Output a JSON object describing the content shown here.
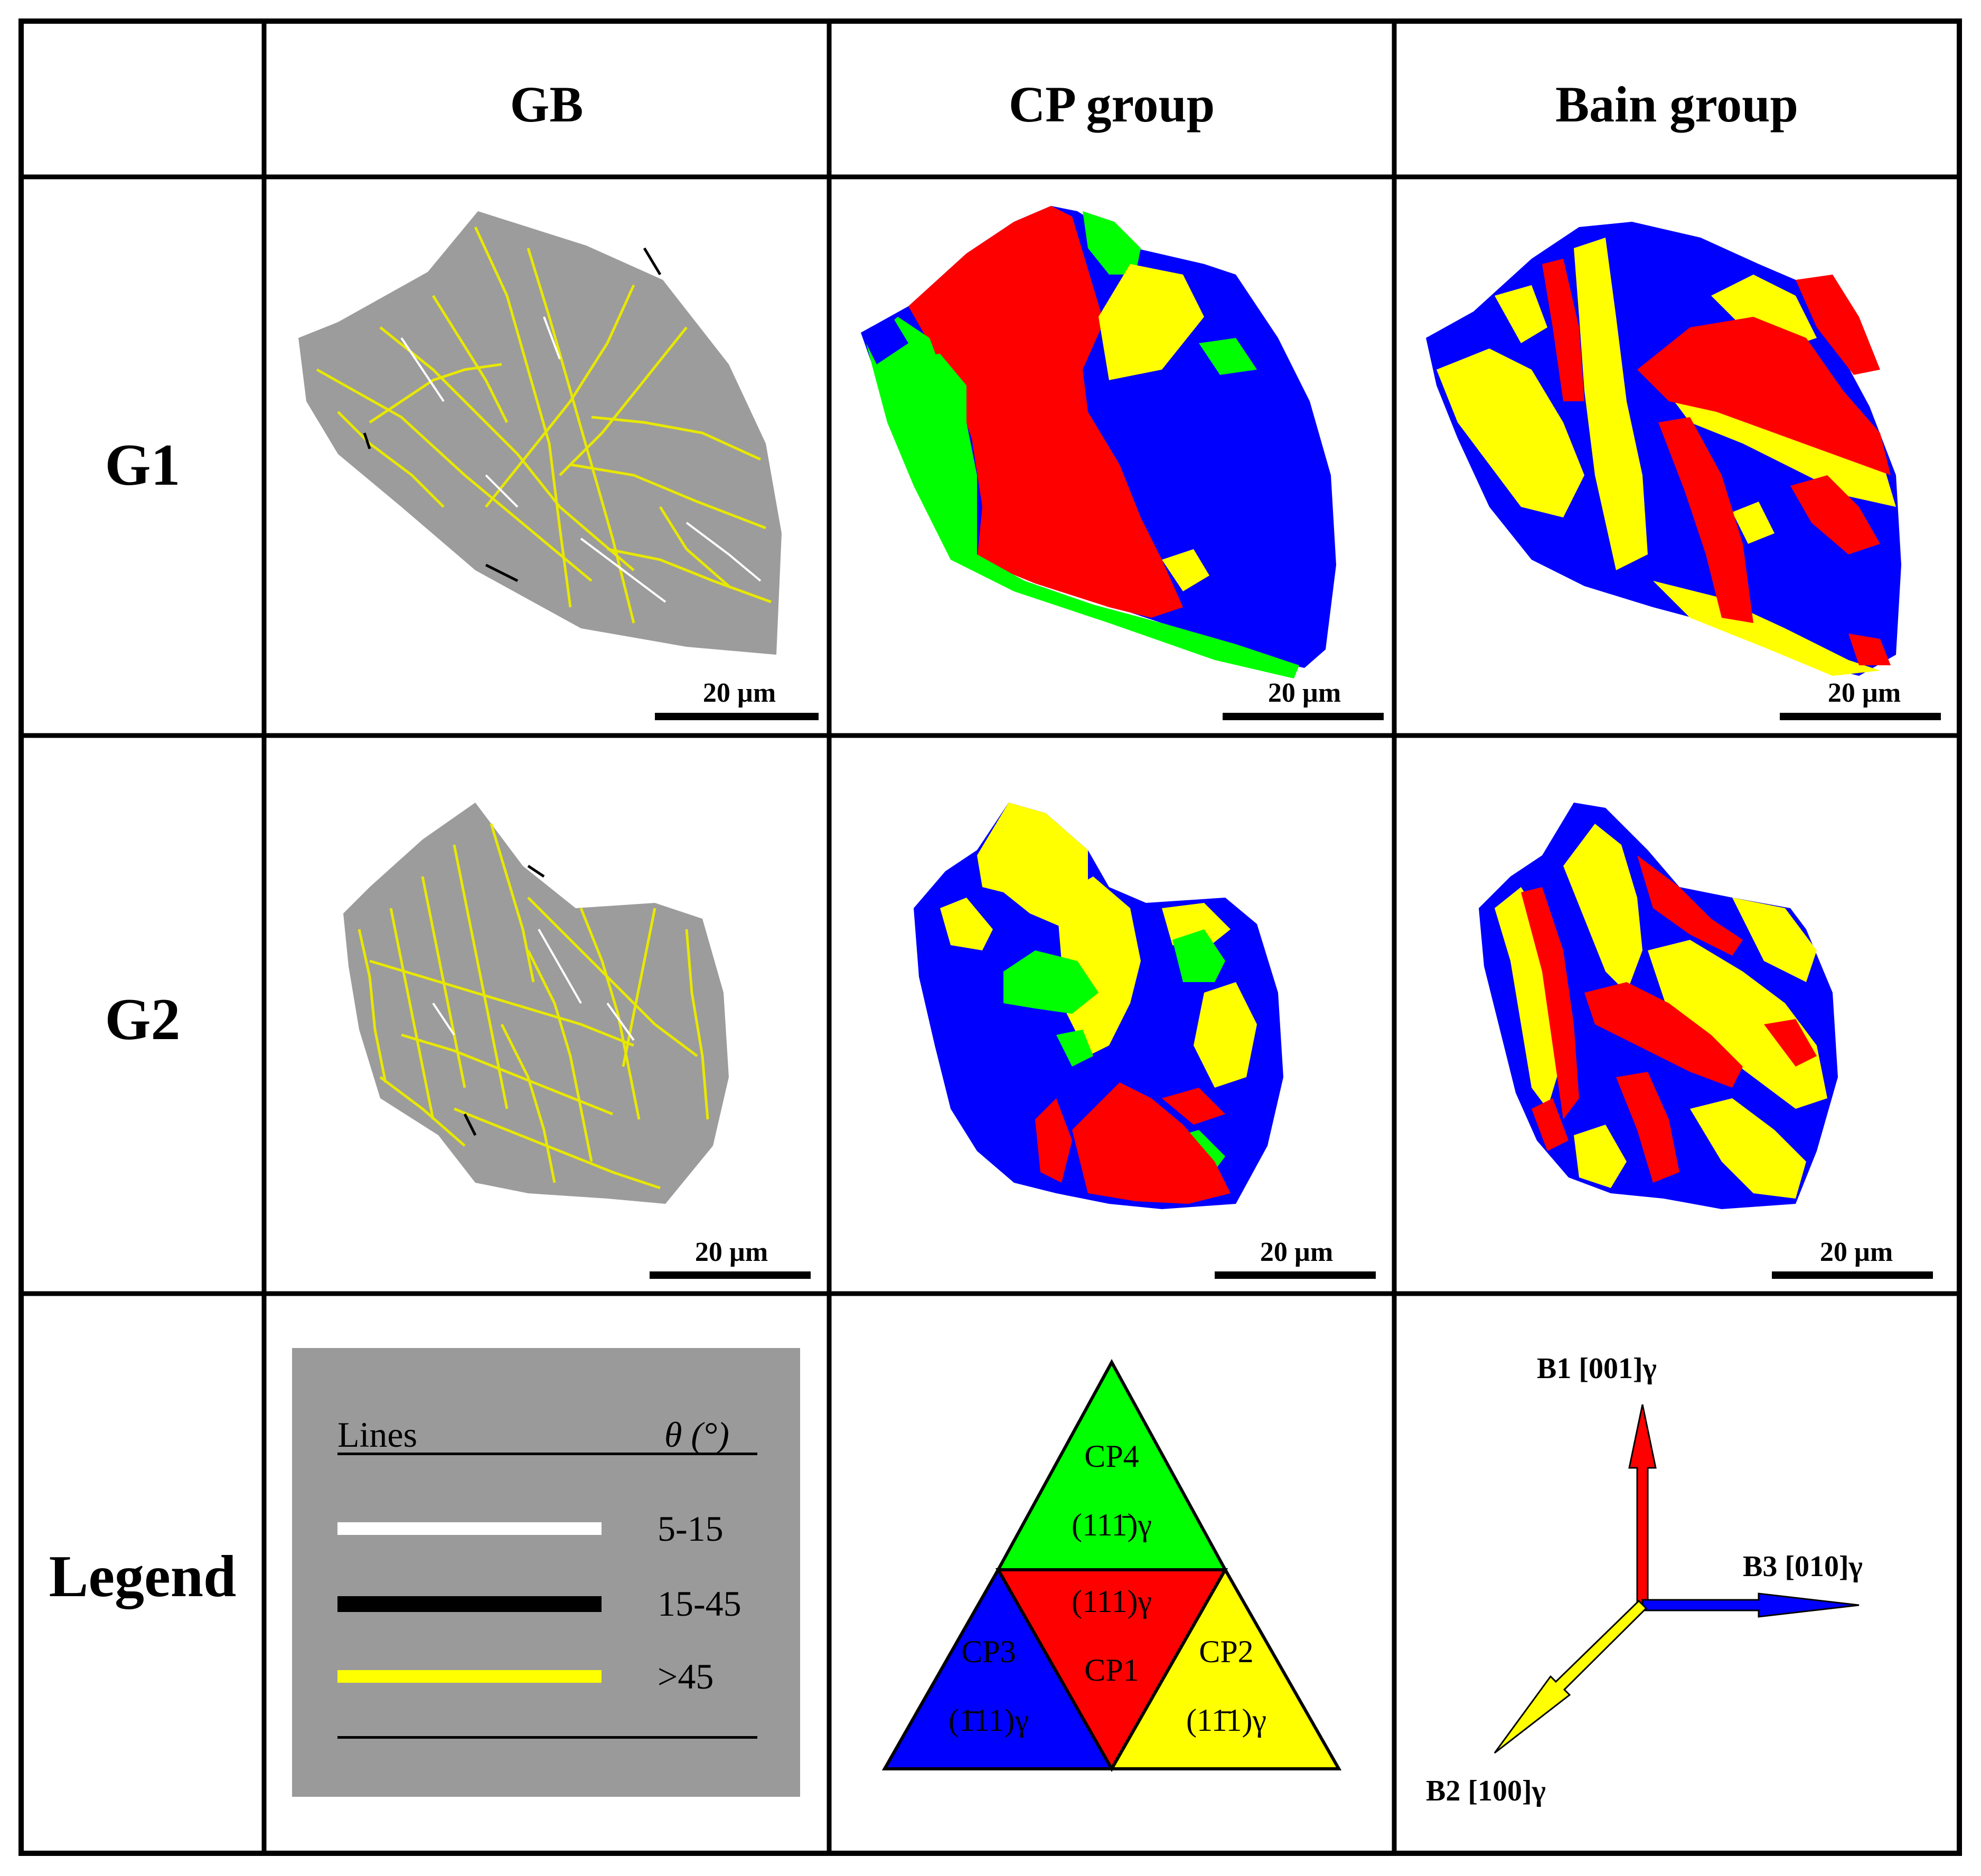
{
  "headers": {
    "gb": "GB",
    "cp": "CP group",
    "bain": "Bain group"
  },
  "rows": {
    "g1": "G1",
    "g2": "G2",
    "legend": "Legend"
  },
  "scale_label": "20 µm",
  "gb_legend": {
    "col_lines": "Lines",
    "col_theta": "θ (°)",
    "items": [
      {
        "range": "5-15",
        "color": "#ffffff"
      },
      {
        "range": "15-45",
        "color": "#000000"
      },
      {
        "range": ">45",
        "color": "#ffff00"
      }
    ]
  },
  "cp_legend": {
    "cp1": {
      "name": "CP1",
      "plane": "(111)γ",
      "color": "#ff0000"
    },
    "cp2": {
      "name": "CP2",
      "plane": "(11̄1)γ",
      "color": "#ffff00"
    },
    "cp3": {
      "name": "CP3",
      "plane": "(1̄11)γ",
      "color": "#0000ff"
    },
    "cp4": {
      "name": "CP4",
      "plane": "(111̄)γ",
      "color": "#00ff00"
    }
  },
  "bain_legend": {
    "b1": {
      "label": "B1 [001]γ",
      "color": "#ff0000"
    },
    "b2": {
      "label": "B2 [100]γ",
      "color": "#ffff00"
    },
    "b3": {
      "label": "B3 [010]γ",
      "color": "#0000ff"
    }
  }
}
